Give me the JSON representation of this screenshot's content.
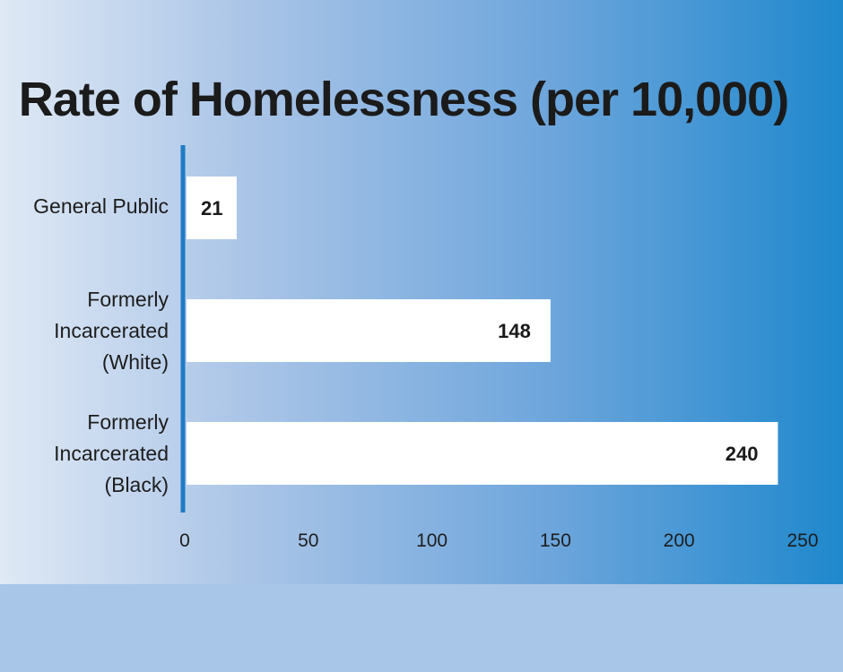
{
  "colors": {
    "bar": "#ffffff",
    "axis": "#1f7cc4",
    "text": "#1d1d1d"
  },
  "chart_data": {
    "type": "bar",
    "orientation": "horizontal",
    "title": "Rate of Homelessness (per 10,000)",
    "categories": [
      [
        "General Public"
      ],
      [
        "Formerly",
        "Incarcerated",
        "(White)"
      ],
      [
        "Formerly",
        "Incarcerated",
        "(Black)"
      ]
    ],
    "values": [
      21,
      148,
      240
    ],
    "xlim": [
      0,
      250
    ],
    "xticks": [
      0,
      50,
      100,
      150,
      200,
      250
    ],
    "xlabel": "",
    "ylabel": "",
    "grid": false,
    "data_labels": true
  }
}
